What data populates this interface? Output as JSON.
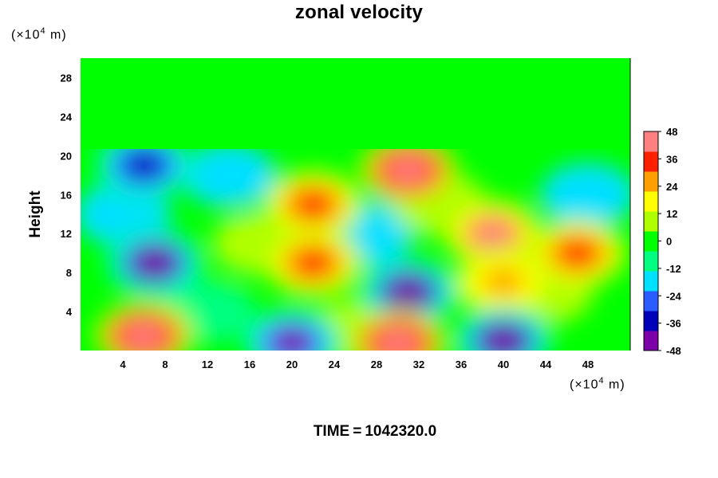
{
  "chart_data": {
    "type": "heatmap",
    "title": "zonal velocity",
    "xlabel": "",
    "xunit_prefix": "(×10",
    "xunit_exp": "4",
    "xunit_suffix": " m)",
    "ylabel": "Height",
    "yunit_prefix": "(×10",
    "yunit_exp": "4",
    "yunit_suffix": " m)",
    "xlim": [
      0,
      52
    ],
    "ylim": [
      0,
      30
    ],
    "xticks": [
      4,
      8,
      12,
      16,
      20,
      24,
      28,
      32,
      36,
      40,
      44,
      48
    ],
    "yticks": [
      4,
      8,
      12,
      16,
      20,
      24,
      28
    ],
    "colorbar": {
      "levels": [
        48,
        36,
        24,
        12,
        0,
        -12,
        -24,
        -36,
        -48
      ],
      "range": [
        -48,
        48
      ],
      "colors": [
        "#7b00a8",
        "#0000b8",
        "#2a5cff",
        "#00e0ff",
        "#00ff80",
        "#00ff00",
        "#b0ff00",
        "#ffff00",
        "#ffa000",
        "#ff2000",
        "#ff8080"
      ]
    },
    "background_value_upper": -2,
    "field_features": [
      {
        "x": 22,
        "y": 15,
        "value": 40
      },
      {
        "x": 31,
        "y": 18.5,
        "value": 48
      },
      {
        "x": 22,
        "y": 9,
        "value": 42
      },
      {
        "x": 39,
        "y": 12,
        "value": 44
      },
      {
        "x": 40,
        "y": 7,
        "value": 30
      },
      {
        "x": 47,
        "y": 10,
        "value": 38
      },
      {
        "x": 7,
        "y": 9,
        "value": -48
      },
      {
        "x": 6,
        "y": 19,
        "value": -40
      },
      {
        "x": 31,
        "y": 6,
        "value": -48
      },
      {
        "x": 6,
        "y": 1.5,
        "value": 48
      },
      {
        "x": 30,
        "y": 0.8,
        "value": 48
      },
      {
        "x": 20,
        "y": 0.8,
        "value": -44
      },
      {
        "x": 40,
        "y": 1,
        "value": -48
      }
    ]
  },
  "footer": {
    "time_label": "TIME",
    "equals": "=",
    "time_value": "1042320.0"
  }
}
